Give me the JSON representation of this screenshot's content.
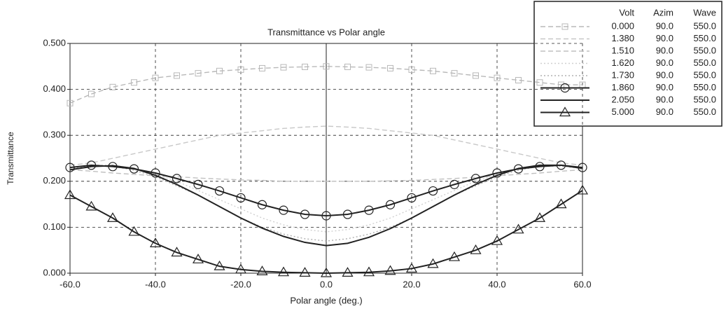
{
  "chart_data": {
    "type": "line",
    "title": "Transmittance vs  Polar angle",
    "x_label": "Polar angle (deg.)",
    "y_label": "Transmittance",
    "x": [
      -60,
      -55,
      -50,
      -45,
      -40,
      -35,
      -30,
      -25,
      -20,
      -15,
      -10,
      -5,
      0,
      5,
      10,
      15,
      20,
      25,
      30,
      35,
      40,
      45,
      50,
      55,
      60
    ],
    "xlim": [
      -60,
      60
    ],
    "xticks": [
      {
        "value": -60,
        "label": "-60.0"
      },
      {
        "value": -40,
        "label": "-40.0"
      },
      {
        "value": -20,
        "label": "-20.0"
      },
      {
        "value": 0,
        "label": "0.0"
      },
      {
        "value": 20,
        "label": "20.0"
      },
      {
        "value": 40,
        "label": "40.0"
      },
      {
        "value": 60,
        "label": "60.0"
      }
    ],
    "ylim": [
      0,
      0.5
    ],
    "yticks": [
      {
        "value": 0,
        "label": "0.000"
      },
      {
        "value": 0.1,
        "label": "0.100"
      },
      {
        "value": 0.2,
        "label": "0.200"
      },
      {
        "value": 0.3,
        "label": "0.300"
      },
      {
        "value": 0.4,
        "label": "0.400"
      },
      {
        "value": 0.5,
        "label": "0.500"
      }
    ],
    "grid": true,
    "legend_position": "upper right",
    "legend_headers": [
      "Volt",
      "Azim",
      "Wave"
    ],
    "series": [
      {
        "name": "0.000",
        "azim": "90.0",
        "wave": "550.0",
        "color": "#b8b8b8",
        "dash": "dashed",
        "marker": "square",
        "values": [
          0.37,
          0.39,
          0.405,
          0.415,
          0.425,
          0.43,
          0.435,
          0.44,
          0.443,
          0.446,
          0.448,
          0.449,
          0.45,
          0.449,
          0.448,
          0.446,
          0.443,
          0.44,
          0.435,
          0.43,
          0.425,
          0.42,
          0.415,
          0.41,
          0.41
        ]
      },
      {
        "name": "1.380",
        "azim": "90.0",
        "wave": "550.0",
        "color": "#c8c8c8",
        "dash": "dashed",
        "marker": "none",
        "values": [
          0.235,
          0.24,
          0.25,
          0.26,
          0.27,
          0.28,
          0.29,
          0.3,
          0.305,
          0.31,
          0.315,
          0.318,
          0.32,
          0.318,
          0.315,
          0.31,
          0.305,
          0.3,
          0.29,
          0.28,
          0.27,
          0.26,
          0.25,
          0.24,
          0.235
        ]
      },
      {
        "name": "1.510",
        "azim": "90.0",
        "wave": "550.0",
        "color": "#c0c0c0",
        "dash": "dashed",
        "marker": "none",
        "values": [
          0.225,
          0.222,
          0.218,
          0.215,
          0.212,
          0.21,
          0.207,
          0.205,
          0.203,
          0.202,
          0.2,
          0.2,
          0.2,
          0.2,
          0.2,
          0.201,
          0.202,
          0.204,
          0.206,
          0.209,
          0.212,
          0.215,
          0.218,
          0.222,
          0.225
        ]
      },
      {
        "name": "1.620",
        "azim": "90.0",
        "wave": "550.0",
        "color": "#d0d0d0",
        "dash": "dotted",
        "marker": "none",
        "values": [
          0.23,
          0.235,
          0.235,
          0.228,
          0.215,
          0.2,
          0.18,
          0.16,
          0.14,
          0.12,
          0.105,
          0.095,
          0.09,
          0.095,
          0.105,
          0.12,
          0.14,
          0.16,
          0.18,
          0.2,
          0.215,
          0.228,
          0.235,
          0.235,
          0.23
        ]
      },
      {
        "name": "1.730",
        "azim": "90.0",
        "wave": "550.0",
        "color": "#b0b0b0",
        "dash": "dotted",
        "marker": "none",
        "values": [
          0.228,
          0.233,
          0.233,
          0.224,
          0.21,
          0.19,
          0.17,
          0.145,
          0.12,
          0.1,
          0.085,
          0.075,
          0.07,
          0.075,
          0.085,
          0.1,
          0.12,
          0.145,
          0.17,
          0.19,
          0.21,
          0.224,
          0.233,
          0.233,
          0.228
        ]
      },
      {
        "name": "1.860",
        "azim": "90.0",
        "wave": "550.0",
        "color": "#222222",
        "dash": "solid",
        "marker": "circle",
        "values": [
          0.23,
          0.235,
          0.232,
          0.227,
          0.218,
          0.206,
          0.193,
          0.179,
          0.164,
          0.149,
          0.137,
          0.128,
          0.125,
          0.128,
          0.137,
          0.149,
          0.164,
          0.179,
          0.193,
          0.206,
          0.218,
          0.227,
          0.232,
          0.235,
          0.23
        ]
      },
      {
        "name": "2.050",
        "azim": "90.0",
        "wave": "550.0",
        "color": "#222222",
        "dash": "solid",
        "marker": "none",
        "values": [
          0.225,
          0.232,
          0.234,
          0.228,
          0.213,
          0.193,
          0.17,
          0.145,
          0.12,
          0.098,
          0.08,
          0.067,
          0.06,
          0.065,
          0.078,
          0.097,
          0.12,
          0.145,
          0.17,
          0.193,
          0.213,
          0.228,
          0.235,
          0.235,
          0.228
        ]
      },
      {
        "name": "5.000",
        "azim": "90.0",
        "wave": "550.0",
        "color": "#222222",
        "dash": "solid",
        "marker": "triangle",
        "values": [
          0.17,
          0.145,
          0.12,
          0.09,
          0.065,
          0.045,
          0.03,
          0.015,
          0.008,
          0.004,
          0.002,
          0.001,
          0,
          0.001,
          0.002,
          0.005,
          0.01,
          0.02,
          0.035,
          0.05,
          0.07,
          0.095,
          0.12,
          0.15,
          0.18
        ]
      }
    ]
  }
}
